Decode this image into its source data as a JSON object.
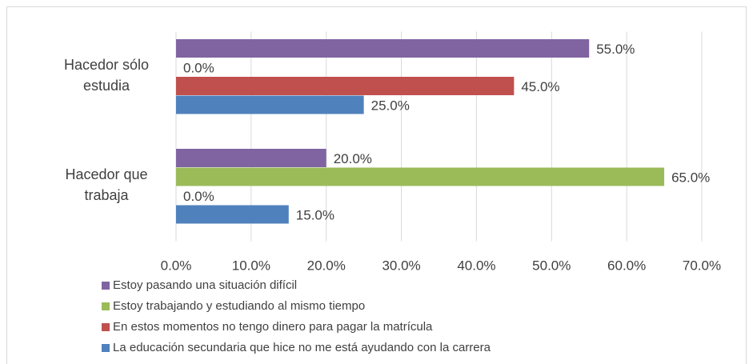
{
  "chart_data": {
    "type": "bar",
    "orientation": "horizontal",
    "categories": [
      "Hacedor sólo estudia",
      "Hacedor que trabaja"
    ],
    "series": [
      {
        "name": "Estoy pasando una situación difícil",
        "color": "#8064a2",
        "values": [
          55,
          20
        ],
        "value_labels": [
          "55.0%",
          "20.0%"
        ]
      },
      {
        "name": "Estoy trabajando y estudiando al mismo tiempo",
        "color": "#9bbb59",
        "values": [
          0,
          65
        ],
        "value_labels": [
          "0.0%",
          "65.0%"
        ]
      },
      {
        "name": "En estos momentos no tengo dinero para pagar la matrícula",
        "color": "#c0504d",
        "values": [
          45,
          0
        ],
        "value_labels": [
          "45.0%",
          "0.0%"
        ]
      },
      {
        "name": "La educación secundaria que hice no me está ayudando con la carrera",
        "color": "#4f81bd",
        "values": [
          25,
          15
        ],
        "value_labels": [
          "25.0%",
          "15.0%"
        ]
      }
    ],
    "xlim": [
      0,
      70
    ],
    "xticks": [
      {
        "value": 0,
        "label": "0.0%"
      },
      {
        "value": 10,
        "label": "10.0%"
      },
      {
        "value": 20,
        "label": "20.0%"
      },
      {
        "value": 30,
        "label": "30.0%"
      },
      {
        "value": 40,
        "label": "40.0%"
      },
      {
        "value": 50,
        "label": "50.0%"
      },
      {
        "value": 60,
        "label": "60.0%"
      },
      {
        "value": 70,
        "label": "70.0%"
      }
    ],
    "grid": true,
    "legend": "bottom"
  }
}
